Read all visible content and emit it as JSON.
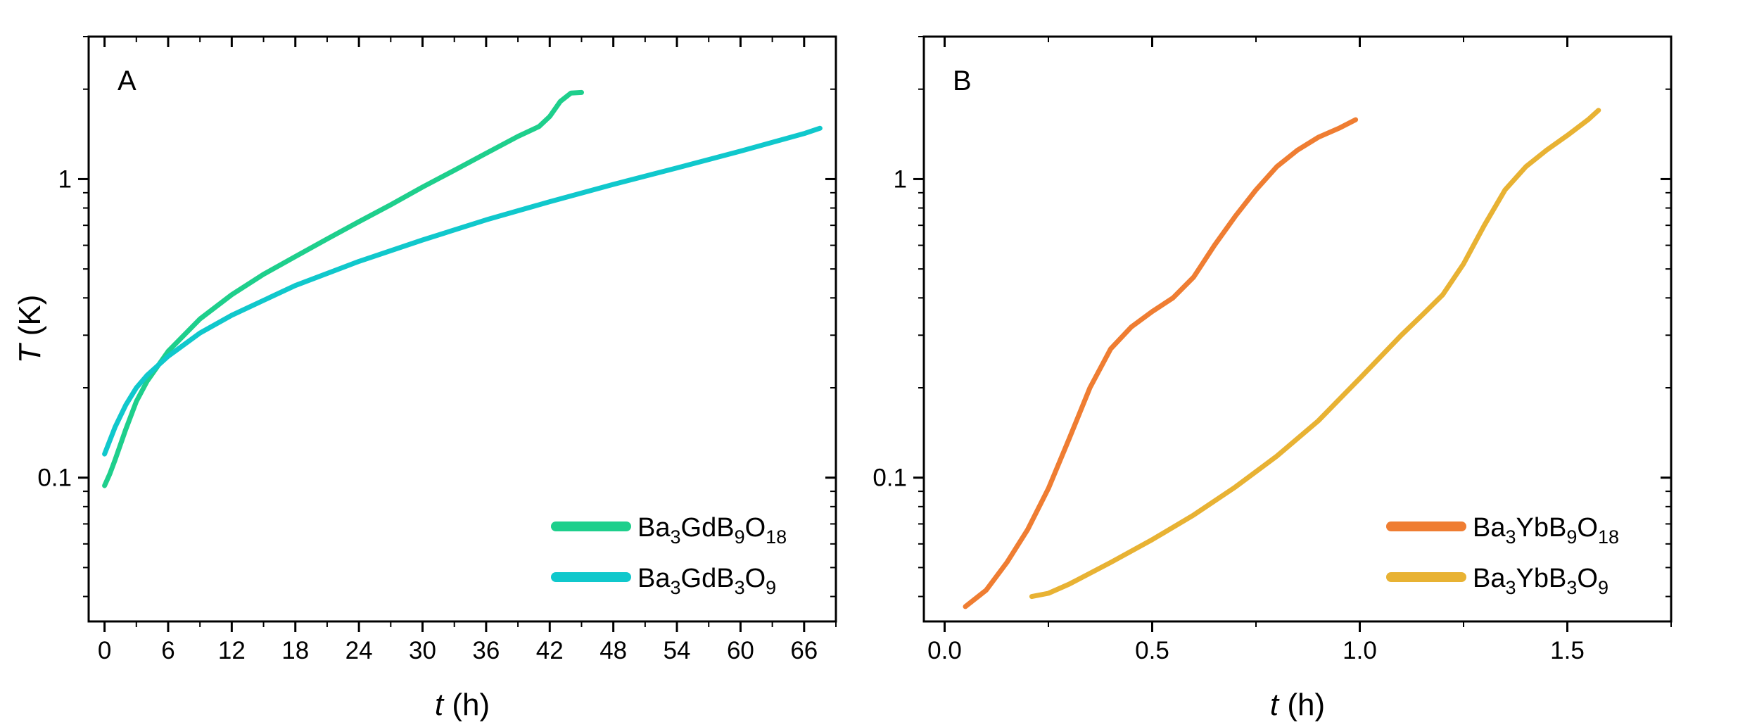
{
  "chart_data": [
    {
      "type": "line",
      "panel_label": "A",
      "xlabel_var": "t",
      "xlabel_unit": " (h)",
      "ylabel_var": "T",
      "ylabel_unit": " (K)",
      "yscale": "log",
      "xlim": [
        -1.5,
        69
      ],
      "ylim": [
        0.033,
        3.0
      ],
      "xticks": [
        0,
        6,
        12,
        18,
        24,
        30,
        36,
        42,
        48,
        54,
        60,
        66
      ],
      "xtick_labels": [
        "0",
        "6",
        "12",
        "18",
        "24",
        "30",
        "36",
        "42",
        "48",
        "54",
        "60",
        "66"
      ],
      "yticks": [
        0.1,
        1
      ],
      "ytick_labels": [
        "0.1",
        "1"
      ],
      "legend_position": "bottom-right",
      "series": [
        {
          "name": "Ba3GdB9O18",
          "legend": [
            [
              "Ba",
              ""
            ],
            [
              "3",
              "sub"
            ],
            [
              "GdB",
              ""
            ],
            [
              "9",
              "sub"
            ],
            [
              "O",
              ""
            ],
            [
              "18",
              "sub"
            ]
          ],
          "color": "#1ecf8c",
          "x": [
            0,
            0.5,
            1,
            2,
            3,
            4,
            6,
            9,
            12,
            15,
            18,
            21,
            24,
            27,
            30,
            33,
            36,
            39,
            41,
            42,
            43,
            44,
            45
          ],
          "y": [
            0.094,
            0.103,
            0.115,
            0.145,
            0.18,
            0.21,
            0.265,
            0.34,
            0.41,
            0.48,
            0.55,
            0.63,
            0.72,
            0.82,
            0.94,
            1.07,
            1.22,
            1.39,
            1.5,
            1.62,
            1.82,
            1.94,
            1.95
          ]
        },
        {
          "name": "Ba3GdB3O9",
          "legend": [
            [
              "Ba",
              ""
            ],
            [
              "3",
              "sub"
            ],
            [
              "GdB",
              ""
            ],
            [
              "3",
              "sub"
            ],
            [
              "O",
              ""
            ],
            [
              "9",
              "sub"
            ]
          ],
          "color": "#10c8cc",
          "x": [
            0,
            1,
            2,
            3,
            4,
            6,
            9,
            12,
            18,
            24,
            30,
            36,
            42,
            48,
            54,
            60,
            66,
            67.5
          ],
          "y": [
            0.12,
            0.148,
            0.175,
            0.2,
            0.22,
            0.255,
            0.305,
            0.35,
            0.44,
            0.53,
            0.625,
            0.73,
            0.84,
            0.96,
            1.09,
            1.24,
            1.42,
            1.48
          ]
        }
      ]
    },
    {
      "type": "line",
      "panel_label": "B",
      "xlabel_var": "t",
      "xlabel_unit": " (h)",
      "ylabel_var": "",
      "ylabel_unit": "",
      "yscale": "log",
      "xlim": [
        -0.05,
        1.75
      ],
      "ylim": [
        0.033,
        3.0
      ],
      "xticks": [
        0,
        0.5,
        1,
        1.5
      ],
      "xtick_labels": [
        "0.0",
        "0.5",
        "1.0",
        "1.5"
      ],
      "yticks": [
        0.1,
        1
      ],
      "ytick_labels": [
        "0.1",
        "1"
      ],
      "legend_position": "bottom-right",
      "series": [
        {
          "name": "Ba3YbB9O18",
          "legend": [
            [
              "Ba",
              ""
            ],
            [
              "3",
              "sub"
            ],
            [
              "YbB",
              ""
            ],
            [
              "9",
              "sub"
            ],
            [
              "O",
              ""
            ],
            [
              "18",
              "sub"
            ]
          ],
          "color": "#ef7d32",
          "x": [
            0.05,
            0.1,
            0.15,
            0.2,
            0.25,
            0.3,
            0.35,
            0.4,
            0.45,
            0.5,
            0.55,
            0.6,
            0.65,
            0.7,
            0.75,
            0.8,
            0.85,
            0.9,
            0.95,
            0.99
          ],
          "y": [
            0.037,
            0.042,
            0.052,
            0.067,
            0.092,
            0.135,
            0.2,
            0.27,
            0.32,
            0.36,
            0.4,
            0.47,
            0.6,
            0.75,
            0.92,
            1.1,
            1.25,
            1.38,
            1.48,
            1.58
          ]
        },
        {
          "name": "Ba3YbB3O9",
          "legend": [
            [
              "Ba",
              ""
            ],
            [
              "3",
              "sub"
            ],
            [
              "YbB",
              ""
            ],
            [
              "3",
              "sub"
            ],
            [
              "O",
              ""
            ],
            [
              "9",
              "sub"
            ]
          ],
          "color": "#e8b233",
          "x": [
            0.21,
            0.25,
            0.3,
            0.4,
            0.5,
            0.6,
            0.7,
            0.8,
            0.9,
            1.0,
            1.1,
            1.15,
            1.2,
            1.25,
            1.3,
            1.35,
            1.4,
            1.45,
            1.5,
            1.55,
            1.575
          ],
          "y": [
            0.04,
            0.041,
            0.044,
            0.052,
            0.062,
            0.075,
            0.093,
            0.118,
            0.155,
            0.215,
            0.3,
            0.35,
            0.41,
            0.52,
            0.7,
            0.92,
            1.1,
            1.25,
            1.4,
            1.58,
            1.7
          ]
        }
      ]
    }
  ]
}
